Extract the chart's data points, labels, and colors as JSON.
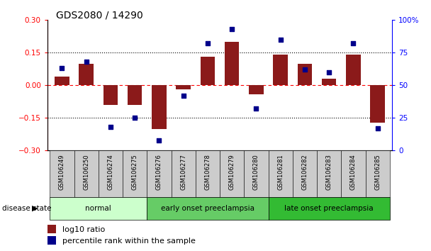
{
  "title": "GDS2080 / 14290",
  "samples": [
    "GSM106249",
    "GSM106250",
    "GSM106274",
    "GSM106275",
    "GSM106276",
    "GSM106277",
    "GSM106278",
    "GSM106279",
    "GSM106280",
    "GSM106281",
    "GSM106282",
    "GSM106283",
    "GSM106284",
    "GSM106285"
  ],
  "log10_ratio": [
    0.04,
    0.1,
    -0.09,
    -0.09,
    -0.2,
    -0.02,
    0.13,
    0.2,
    -0.04,
    0.14,
    0.1,
    0.03,
    0.14,
    -0.17
  ],
  "percentile_rank": [
    63,
    68,
    18,
    25,
    8,
    42,
    82,
    93,
    32,
    85,
    62,
    60,
    82,
    17
  ],
  "bar_color": "#8B1A1A",
  "dot_color": "#00008B",
  "groups": [
    {
      "label": "normal",
      "start": 0,
      "end": 3,
      "color": "#ccffcc"
    },
    {
      "label": "early onset preeclampsia",
      "start": 4,
      "end": 8,
      "color": "#66cc66"
    },
    {
      "label": "late onset preeclampsia",
      "start": 9,
      "end": 13,
      "color": "#33bb33"
    }
  ],
  "ylim_left": [
    -0.3,
    0.3
  ],
  "ylim_right": [
    0,
    100
  ],
  "yticks_left": [
    -0.3,
    -0.15,
    0.0,
    0.15,
    0.3
  ],
  "yticks_right": [
    0,
    25,
    50,
    75,
    100
  ],
  "hlines": [
    -0.15,
    0.0,
    0.15
  ],
  "hline_styles": [
    "dotted",
    "dashed",
    "dotted"
  ],
  "hline_colors": [
    "black",
    "red",
    "black"
  ],
  "label_box_color": "#cccccc",
  "fig_width": 6.08,
  "fig_height": 3.54,
  "dpi": 100
}
